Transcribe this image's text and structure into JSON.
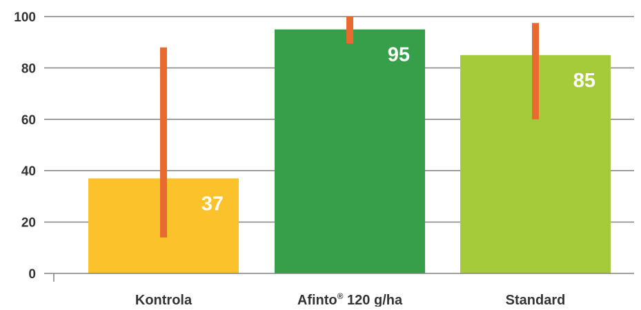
{
  "chart_data": {
    "type": "bar",
    "title": "",
    "xlabel": "",
    "ylabel": "",
    "ylim": [
      0,
      100
    ],
    "yticks": [
      0,
      20,
      40,
      60,
      80,
      100
    ],
    "grid": true,
    "categories": [
      {
        "pre": "Kontrola",
        "sup": "",
        "post": ""
      },
      {
        "pre": "Afinto",
        "sup": "®",
        "post": " 120 g/ha"
      },
      {
        "pre": "Standard",
        "sup": "",
        "post": ""
      }
    ],
    "values": [
      37,
      95,
      85
    ],
    "data_labels": [
      "37",
      "95",
      "85"
    ],
    "error_bars": [
      {
        "low": 14,
        "high": 88
      },
      {
        "low": 89.5,
        "high": 100
      },
      {
        "low": 60,
        "high": 97.5
      }
    ],
    "colors": {
      "bars": [
        "#fcc22b",
        "#379e4a",
        "#a6cb3a"
      ],
      "error_bar": "#e86a30",
      "grid": "#808080",
      "axis": "#808080",
      "text": "#333333",
      "data_label": "#ffffff"
    }
  }
}
